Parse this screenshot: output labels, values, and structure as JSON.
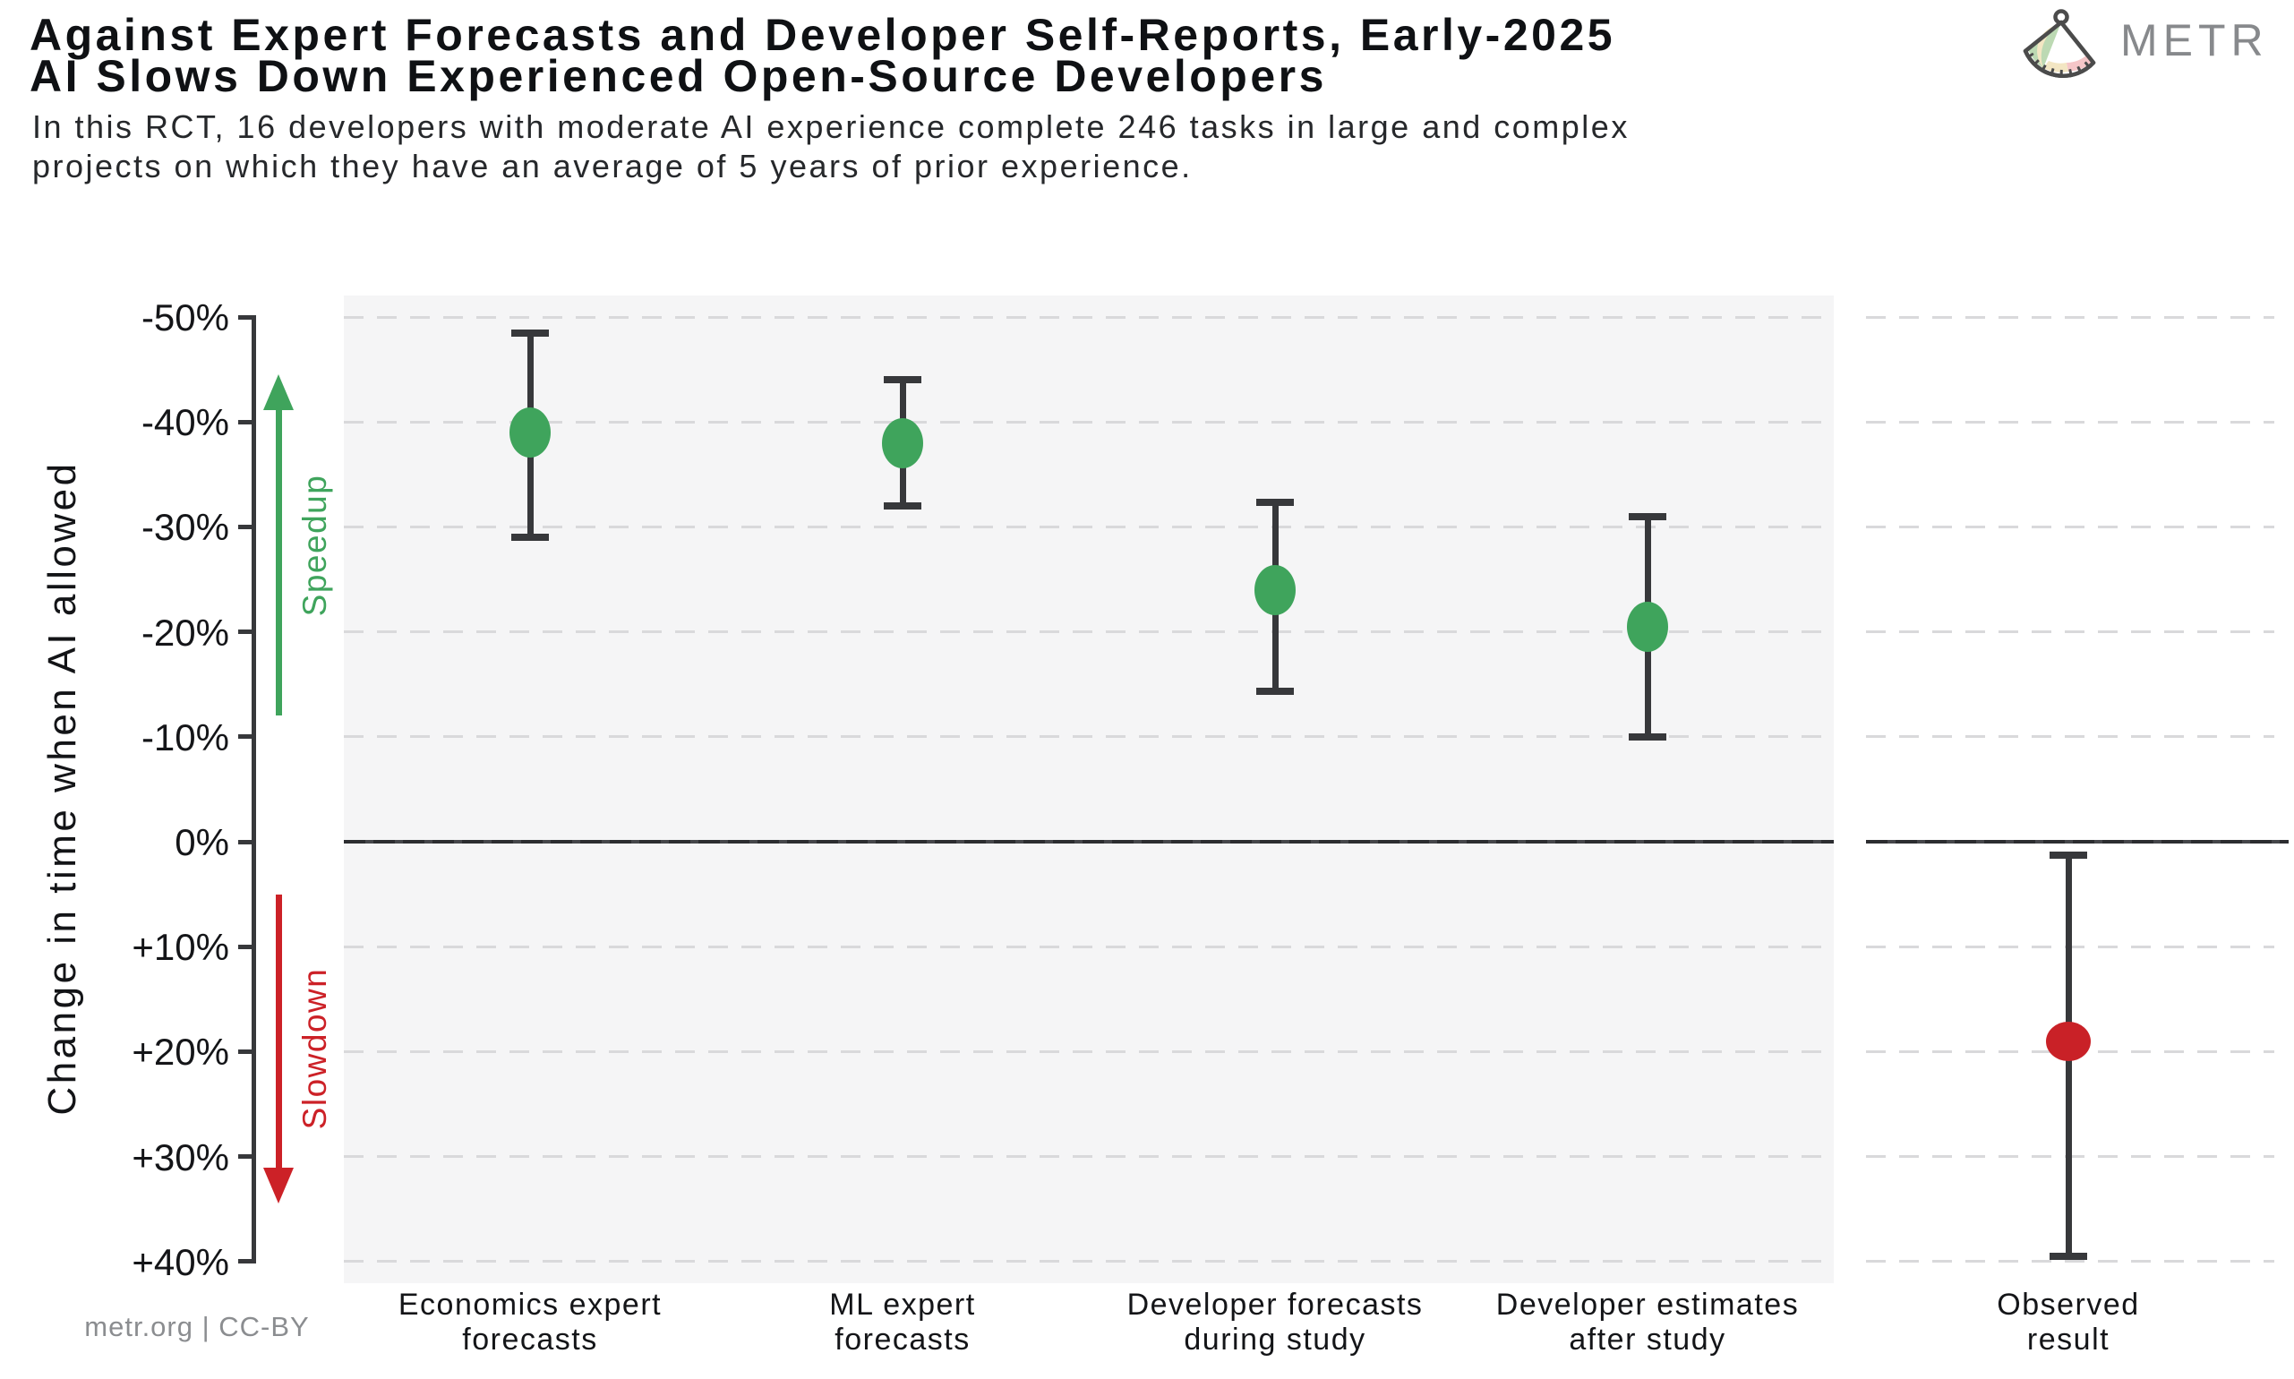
{
  "header": {
    "title_lines": [
      "Against Expert Forecasts and Developer Self-Reports, Early-2025",
      "AI Slows Down Experienced Open-Source Developers"
    ],
    "subtitle_lines": [
      "In this RCT, 16 developers with moderate AI experience complete 246 tasks in large and complex",
      "projects on which they have an average of 5 years of prior experience."
    ],
    "brand": "METR"
  },
  "footer": {
    "credit": "metr.org  |  CC-BY"
  },
  "colors": {
    "accent_green": "#3fa45c",
    "accent_red": "#c92127",
    "axis_dark": "#37383b",
    "grid_gray": "#d9d9db",
    "panel_gray": "#f5f5f6",
    "zero_line_base": "#45464a",
    "zero_line_dash": "#2c2d30",
    "logo_green": "#bcd9b3",
    "logo_cream": "#f3e6c3",
    "logo_pink": "#f5c6c8",
    "logo_outline": "#4b4b4b"
  },
  "chart_data": {
    "type": "scatter",
    "title": "Against Expert Forecasts and Developer Self-Reports, Early-2025 AI Slows Down Experienced Open-Source Developers",
    "ylabel": "Change in time when AI allowed",
    "ylim": [
      -50,
      40
    ],
    "y_axis_inverted_note": "negative (speedup) plotted at top, positive (slowdown) at bottom",
    "grid": "dashed horizontal lines every 10%",
    "yticks": [
      {
        "v": -50,
        "label": "-50%"
      },
      {
        "v": -40,
        "label": "-40%"
      },
      {
        "v": -30,
        "label": "-30%"
      },
      {
        "v": -20,
        "label": "-20%"
      },
      {
        "v": -10,
        "label": "-10%"
      },
      {
        "v": 0,
        "label": "0%"
      },
      {
        "v": 10,
        "label": "+10%"
      },
      {
        "v": 20,
        "label": "+20%"
      },
      {
        "v": 30,
        "label": "+30%"
      },
      {
        "v": 40,
        "label": "+40%"
      }
    ],
    "categories": [
      "Economics expert forecasts",
      "ML expert forecasts",
      "Developer forecasts during study",
      "Developer estimates after study",
      "Observed result"
    ],
    "points": [
      {
        "label_lines": [
          "Economics expert",
          "forecasts"
        ],
        "value": -39,
        "ci": [
          -48.5,
          -29
        ],
        "color": "#3fa45c",
        "panel": "forecasts"
      },
      {
        "label_lines": [
          "ML expert",
          "forecasts"
        ],
        "value": -38,
        "ci": [
          -44,
          -32
        ],
        "color": "#3fa45c",
        "panel": "forecasts"
      },
      {
        "label_lines": [
          "Developer forecasts",
          "during study"
        ],
        "value": -24,
        "ci": [
          -32.3,
          -14.3
        ],
        "color": "#3fa45c",
        "panel": "forecasts"
      },
      {
        "label_lines": [
          "Developer estimates",
          "after study"
        ],
        "value": -20.5,
        "ci": [
          -31,
          -10
        ],
        "color": "#3fa45c",
        "panel": "forecasts"
      },
      {
        "label_lines": [
          "Observed",
          "result"
        ],
        "value": 19,
        "ci": [
          1.3,
          39.5
        ],
        "color": "#c92127",
        "panel": "observed"
      }
    ],
    "annotations": [
      {
        "label": "Speedup",
        "direction": "up",
        "color": "#3fa45c",
        "v_from": -12,
        "v_to": -44.5
      },
      {
        "label": "Slowdown",
        "direction": "down",
        "color": "#cc2127",
        "v_from": 5,
        "v_to": 34.5
      }
    ]
  }
}
